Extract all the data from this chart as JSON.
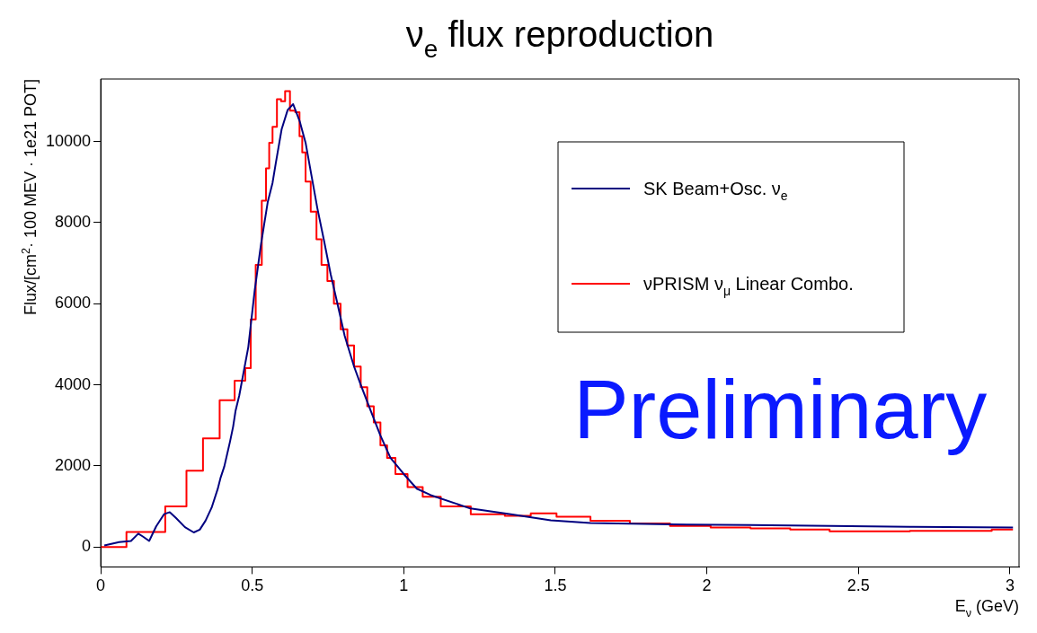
{
  "chart_data": {
    "type": "line",
    "title": "ν$_{e}$ flux reproduction",
    "xlabel": "E$_{ν}$ (GeV)",
    "ylabel": "Flux/[cm$^{2}$· 100 MEV · 1e21 POT]",
    "xlim": [
      0,
      3.03
    ],
    "xticks": [
      0,
      0.5,
      1,
      1.5,
      2,
      2.5,
      3
    ],
    "ylim": [
      -490,
      11540
    ],
    "yticks": [
      0,
      2000,
      4000,
      6000,
      8000,
      10000
    ],
    "grid": false,
    "legend": "top right",
    "marker": "none",
    "line_style": "solid",
    "annotations": [
      "Preliminary"
    ],
    "series": [
      {
        "name": "SK Beam+Osc. ν$_{e}$",
        "color": "#000080",
        "x": [
          0.012,
          0.061,
          0.1,
          0.124,
          0.139,
          0.16,
          0.183,
          0.209,
          0.228,
          0.248,
          0.278,
          0.307,
          0.327,
          0.346,
          0.366,
          0.386,
          0.396,
          0.408,
          0.427,
          0.437,
          0.445,
          0.457,
          0.467,
          0.487,
          0.508,
          0.529,
          0.551,
          0.567,
          0.578,
          0.597,
          0.617,
          0.635,
          0.657,
          0.676,
          0.695,
          0.715,
          0.737,
          0.759,
          0.78,
          0.805,
          0.836,
          0.857,
          0.89,
          0.923,
          0.956,
          1.0,
          1.043,
          1.089,
          1.22,
          1.353,
          1.485,
          1.616,
          1.88,
          2.144,
          2.41,
          2.67,
          3.01
        ],
        "values": [
          40,
          120,
          150,
          330,
          260,
          150,
          510,
          810,
          860,
          720,
          490,
          360,
          430,
          650,
          970,
          1430,
          1720,
          1990,
          2610,
          2970,
          3360,
          3730,
          4130,
          4930,
          6320,
          7470,
          8500,
          8980,
          9480,
          10300,
          10780,
          10920,
          10490,
          9970,
          9180,
          8350,
          7550,
          6720,
          6040,
          5210,
          4450,
          4020,
          3380,
          2750,
          2200,
          1800,
          1440,
          1280,
          950,
          810,
          660,
          590,
          560,
          540,
          520,
          500,
          480
        ]
      },
      {
        "name": "νPRISM ν$_{μ}$ Linear Combo.",
        "color": "#ff0000",
        "type": "step",
        "x": [
          0,
          0.17,
          0.256,
          0.31,
          0.365,
          0.42,
          0.464,
          0.49,
          0.5,
          0.523,
          0.54,
          0.551,
          0.561,
          0.573,
          0.59,
          0.6,
          0.617,
          0.632,
          0.652,
          0.66,
          0.67,
          0.682,
          0.704,
          0.72,
          0.737,
          0.759,
          0.78,
          0.803,
          0.825,
          0.847,
          0.869,
          0.89,
          0.912,
          0.934,
          0.956,
          0.989,
          1.036,
          1.089,
          1.155,
          1.287,
          1.38,
          1.458,
          1.55,
          1.682,
          1.81,
          1.947,
          2.078,
          2.21,
          2.34,
          2.47,
          2.6,
          2.74,
          2.87,
          3.01
        ],
        "values": [
          0,
          370,
          1000,
          1880,
          2680,
          3620,
          4100,
          4410,
          5610,
          6960,
          8540,
          9340,
          9970,
          10360,
          11040,
          10990,
          11240,
          10760,
          10720,
          10130,
          9730,
          9010,
          8270,
          7590,
          6960,
          6560,
          6000,
          5370,
          4970,
          4450,
          3940,
          3470,
          3070,
          2510,
          2200,
          1800,
          1480,
          1240,
          1000,
          810,
          770,
          830,
          750,
          650,
          580,
          520,
          480,
          460,
          430,
          390,
          390,
          400,
          400,
          430
        ]
      }
    ]
  }
}
